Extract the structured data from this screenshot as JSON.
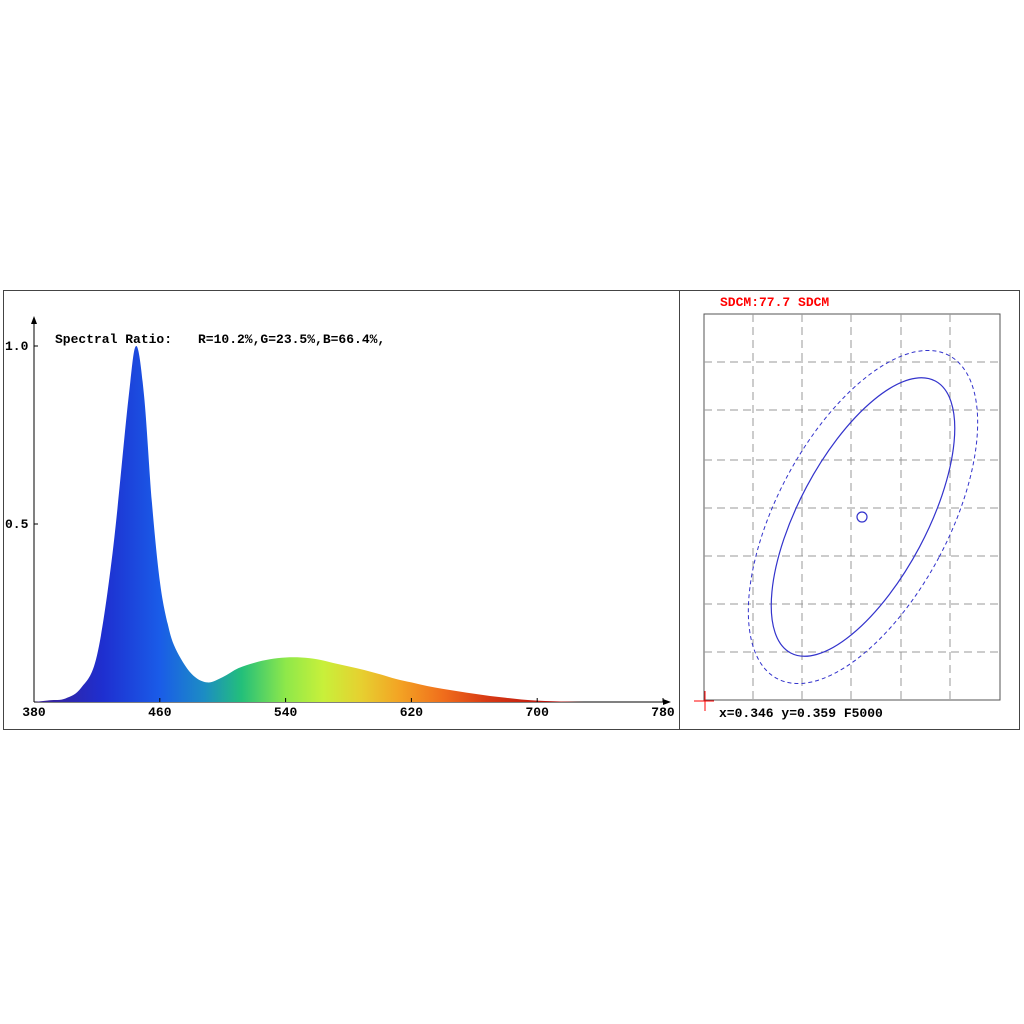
{
  "spectrum": {
    "ratio_label": "Spectral Ratio:",
    "ratio_values": "R=10.2%,G=23.5%,B=66.4%,"
  },
  "chromaticity": {
    "sdcm_label": "SDCM:77.7 SDCM",
    "coords_label": "x=0.346 y=0.359 F5000",
    "sdcm_color": "#ff0000",
    "ellipse_color": "#3333cc"
  },
  "chart_data": [
    {
      "type": "area",
      "x": [
        380,
        390,
        400,
        410,
        420,
        430,
        440,
        445,
        450,
        455,
        460,
        465,
        470,
        480,
        490,
        500,
        510,
        520,
        530,
        540,
        550,
        560,
        570,
        580,
        590,
        600,
        610,
        620,
        630,
        640,
        650,
        660,
        670,
        680,
        690,
        700,
        710,
        720,
        730,
        740,
        750,
        760,
        770,
        780
      ],
      "y": [
        0.0,
        0.005,
        0.01,
        0.04,
        0.13,
        0.42,
        0.85,
        1.0,
        0.86,
        0.56,
        0.34,
        0.22,
        0.15,
        0.08,
        0.055,
        0.07,
        0.095,
        0.11,
        0.12,
        0.125,
        0.125,
        0.12,
        0.11,
        0.1,
        0.09,
        0.078,
        0.065,
        0.055,
        0.045,
        0.037,
        0.03,
        0.023,
        0.017,
        0.012,
        0.007,
        0.004,
        0.002,
        0.001,
        0.0,
        0.0,
        0.0,
        0.0,
        0.0,
        0.0
      ],
      "xlim": [
        380,
        780
      ],
      "ylim": [
        0,
        1.0
      ],
      "xticks": [
        "380",
        "460",
        "540",
        "620",
        "700",
        "780"
      ],
      "yticks": [
        "0.5",
        "1.0"
      ]
    }
  ]
}
